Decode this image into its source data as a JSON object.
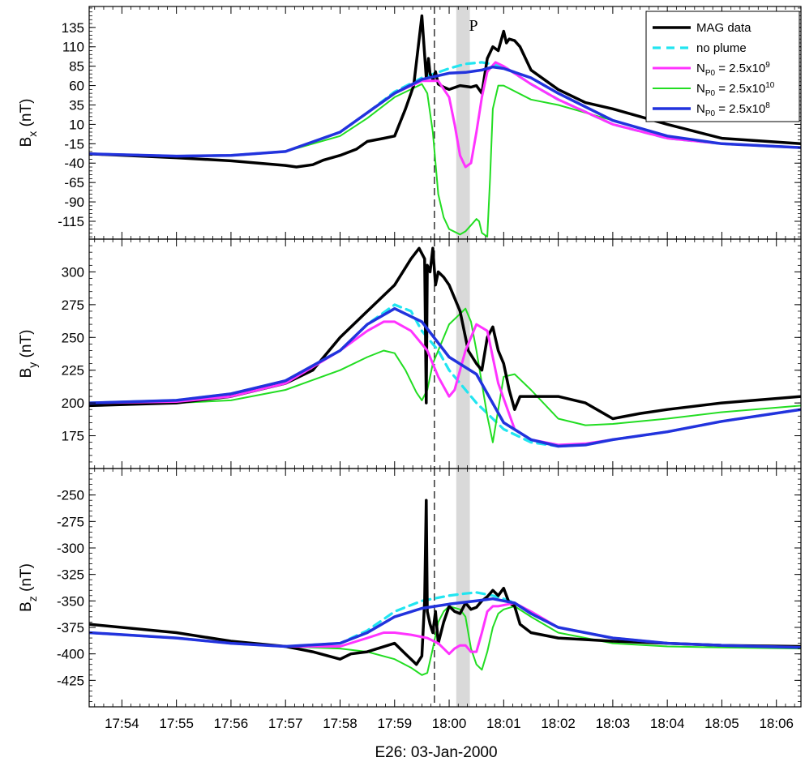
{
  "figure": {
    "xlabel": "E26: 03-Jan-2000",
    "x_ticks": [
      "17:54",
      "17:55",
      "17:56",
      "17:57",
      "17:58",
      "17:59",
      "18:00",
      "18:01",
      "18:02",
      "18:03",
      "18:04",
      "18:05",
      "18:06"
    ],
    "x_range_minutes": [
      -6.6,
      6.45
    ],
    "shaded_label": "P",
    "shaded_interval_minutes": [
      0.13,
      0.38
    ],
    "dashed_line_minute": -0.27
  },
  "legend": {
    "entries": [
      {
        "label": "MAG data",
        "color": "#000000",
        "style": "solid"
      },
      {
        "label": "no plume",
        "color": "#22e5f0",
        "style": "dashed"
      },
      {
        "label": "N_P0 = 2.5x10^9",
        "display": [
          "N",
          "P0",
          " = 2.5x10",
          "9"
        ],
        "color": "#ff33ff",
        "style": "solid"
      },
      {
        "label": "N_P0 = 2.5x10^10",
        "display": [
          "N",
          "P0",
          " = 2.5x10",
          "10"
        ],
        "color": "#22dd22",
        "style": "solid"
      },
      {
        "label": "N_P0 = 2.5x10^8",
        "display": [
          "N",
          "P0",
          " = 2.5x10",
          "8"
        ],
        "color": "#2233dd",
        "style": "solid"
      }
    ]
  },
  "chart_data": [
    {
      "type": "line",
      "panel": "Bx",
      "ylabel_main": "B",
      "ylabel_sub": "x",
      "ylabel_unit": "(nT)",
      "ylim": [
        -138,
        162
      ],
      "y_ticks": [
        135,
        110,
        85,
        60,
        35,
        10,
        -15,
        -40,
        -65,
        -90,
        -115
      ],
      "series": [
        {
          "name": "MAG data",
          "x": [
            -6.6,
            -5,
            -4,
            -3.5,
            -3,
            -2.8,
            -2.5,
            -2.3,
            -2,
            -1.7,
            -1.5,
            -1.2,
            -1,
            -0.8,
            -0.65,
            -0.5,
            -0.42,
            -0.38,
            -0.35,
            -0.3,
            -0.25,
            -0.2,
            -0.1,
            0,
            0.2,
            0.4,
            0.5,
            0.6,
            0.7,
            0.8,
            0.9,
            1,
            1.05,
            1.1,
            1.2,
            1.3,
            1.5,
            2,
            2.5,
            3,
            3.5,
            4,
            5,
            6.45
          ],
          "y": [
            -28,
            -33,
            -37,
            -40,
            -43,
            -45,
            -42,
            -36,
            -30,
            -22,
            -12,
            -8,
            -5,
            30,
            60,
            150,
            70,
            95,
            75,
            68,
            78,
            62,
            58,
            55,
            60,
            58,
            60,
            50,
            95,
            110,
            105,
            130,
            115,
            120,
            118,
            110,
            80,
            55,
            38,
            30,
            20,
            10,
            -8,
            -15
          ]
        },
        {
          "name": "no plume",
          "x": [
            -6.6,
            -5,
            -4,
            -3,
            -2,
            -1.5,
            -1,
            -0.5,
            0,
            0.3,
            0.6,
            1,
            1.5,
            2,
            3,
            4,
            5,
            6.45
          ],
          "y": [
            -28,
            -31,
            -30,
            -25,
            0,
            25,
            52,
            70,
            82,
            88,
            90,
            85,
            62,
            42,
            10,
            -8,
            -15,
            -20
          ]
        },
        {
          "name": "N_P0 = 2.5x10^9",
          "x": [
            -6.6,
            -5,
            -4,
            -3,
            -2,
            -1.5,
            -1,
            -0.5,
            -0.2,
            0,
            0.1,
            0.2,
            0.3,
            0.4,
            0.5,
            0.6,
            0.7,
            0.85,
            1,
            1.5,
            2,
            3,
            4,
            5,
            6.45
          ],
          "y": [
            -28,
            -31,
            -30,
            -25,
            0,
            25,
            50,
            66,
            66,
            45,
            10,
            -30,
            -45,
            -40,
            0,
            45,
            78,
            90,
            85,
            62,
            42,
            10,
            -8,
            -15,
            -20
          ]
        },
        {
          "name": "N_P0 = 2.5x10^10",
          "x": [
            -6.6,
            -5,
            -4,
            -3,
            -2,
            -1.5,
            -1,
            -0.5,
            -0.4,
            -0.3,
            -0.2,
            -0.1,
            0,
            0.2,
            0.3,
            0.4,
            0.5,
            0.55,
            0.6,
            0.7,
            0.75,
            0.8,
            0.9,
            1,
            1.5,
            2,
            3,
            4,
            5,
            6.45
          ],
          "y": [
            -28,
            -31,
            -30,
            -25,
            -5,
            18,
            45,
            62,
            50,
            0,
            -80,
            -110,
            -125,
            -132,
            -128,
            -120,
            -112,
            -115,
            -130,
            -135,
            -60,
            30,
            60,
            60,
            42,
            35,
            15,
            -5,
            -15,
            -20
          ]
        },
        {
          "name": "N_P0 = 2.5x10^8",
          "x": [
            -6.6,
            -5,
            -4,
            -3,
            -2,
            -1.5,
            -1,
            -0.5,
            0,
            0.3,
            0.6,
            0.8,
            1,
            1.5,
            2,
            3,
            4,
            5,
            6.45
          ],
          "y": [
            -28,
            -31,
            -30,
            -25,
            0,
            25,
            50,
            68,
            76,
            77,
            80,
            84,
            82,
            70,
            50,
            15,
            -5,
            -15,
            -20
          ]
        }
      ]
    },
    {
      "type": "line",
      "panel": "By",
      "ylabel_main": "B",
      "ylabel_sub": "y",
      "ylabel_unit": "(nT)",
      "ylim": [
        150,
        325
      ],
      "y_ticks": [
        300,
        275,
        250,
        225,
        200,
        175
      ],
      "series": [
        {
          "name": "MAG data",
          "x": [
            -6.6,
            -5,
            -4,
            -3,
            -2.5,
            -2,
            -1.5,
            -1,
            -0.7,
            -0.55,
            -0.45,
            -0.42,
            -0.4,
            -0.35,
            -0.3,
            -0.25,
            -0.2,
            -0.1,
            0,
            0.2,
            0.35,
            0.5,
            0.6,
            0.7,
            0.8,
            0.9,
            1,
            1.1,
            1.2,
            1.3,
            1.5,
            2,
            2.5,
            3,
            3.5,
            4,
            5,
            6.45
          ],
          "y": [
            198,
            200,
            205,
            215,
            225,
            250,
            270,
            290,
            310,
            318,
            310,
            200,
            305,
            300,
            318,
            290,
            300,
            296,
            290,
            270,
            240,
            230,
            225,
            250,
            258,
            240,
            230,
            210,
            195,
            205,
            205,
            205,
            200,
            188,
            192,
            195,
            200,
            205
          ]
        },
        {
          "name": "no plume",
          "x": [
            -6.6,
            -5,
            -4,
            -3,
            -2,
            -1.5,
            -1,
            -0.7,
            -0.5,
            -0.2,
            0,
            0.5,
            1,
            1.5,
            2,
            2.5,
            3,
            4,
            5,
            6.45
          ],
          "y": [
            200,
            202,
            207,
            217,
            240,
            260,
            275,
            270,
            255,
            240,
            225,
            200,
            180,
            170,
            167,
            168,
            172,
            178,
            186,
            195
          ]
        },
        {
          "name": "N_P0 = 2.5x10^9",
          "x": [
            -6.6,
            -5,
            -4,
            -3,
            -2,
            -1.5,
            -1.2,
            -1,
            -0.7,
            -0.4,
            -0.2,
            0,
            0.1,
            0.2,
            0.3,
            0.5,
            0.7,
            0.9,
            1.2,
            1.5,
            2,
            2.5,
            3,
            4,
            5,
            6.45
          ],
          "y": [
            200,
            201,
            205,
            215,
            240,
            255,
            262,
            262,
            255,
            240,
            220,
            205,
            210,
            225,
            240,
            260,
            255,
            215,
            180,
            172,
            168,
            169,
            172,
            178,
            186,
            195
          ]
        },
        {
          "name": "N_P0 = 2.5x10^10",
          "x": [
            -6.6,
            -5,
            -4,
            -3,
            -2,
            -1.5,
            -1.2,
            -1,
            -0.8,
            -0.6,
            -0.5,
            -0.4,
            -0.3,
            -0.1,
            0,
            0.2,
            0.3,
            0.4,
            0.5,
            0.6,
            0.7,
            0.8,
            0.9,
            1,
            1.2,
            1.5,
            2,
            2.5,
            3,
            4,
            5,
            6.45
          ],
          "y": [
            200,
            200,
            202,
            210,
            225,
            235,
            240,
            238,
            225,
            208,
            202,
            210,
            230,
            250,
            260,
            268,
            272,
            262,
            240,
            215,
            190,
            170,
            195,
            220,
            222,
            210,
            188,
            183,
            184,
            188,
            193,
            198
          ]
        },
        {
          "name": "N_P0 = 2.5x10^8",
          "x": [
            -6.6,
            -5,
            -4,
            -3,
            -2,
            -1.5,
            -1,
            -0.5,
            0,
            0.5,
            1,
            1.5,
            2,
            2.5,
            3,
            4,
            5,
            6.45
          ],
          "y": [
            200,
            202,
            207,
            217,
            240,
            260,
            272,
            262,
            235,
            222,
            185,
            172,
            167,
            168,
            172,
            178,
            186,
            195
          ]
        }
      ]
    },
    {
      "type": "line",
      "panel": "Bz",
      "ylabel_main": "B",
      "ylabel_sub": "z",
      "ylabel_unit": "(nT)",
      "ylim": [
        -450,
        -225
      ],
      "y_ticks": [
        -250,
        -275,
        -300,
        -325,
        -350,
        -375,
        -400,
        -425
      ],
      "series": [
        {
          "name": "MAG data",
          "x": [
            -6.6,
            -5,
            -4,
            -3,
            -2.5,
            -2,
            -1.8,
            -1.5,
            -1,
            -0.8,
            -0.6,
            -0.5,
            -0.45,
            -0.42,
            -0.4,
            -0.35,
            -0.3,
            -0.25,
            -0.2,
            -0.1,
            0,
            0.1,
            0.2,
            0.3,
            0.4,
            0.5,
            0.6,
            0.7,
            0.8,
            0.9,
            1,
            1.1,
            1.2,
            1.3,
            1.5,
            2,
            3,
            4,
            5,
            6.45
          ],
          "y": [
            -372,
            -380,
            -388,
            -393,
            -398,
            -405,
            -400,
            -398,
            -390,
            -400,
            -410,
            -402,
            -350,
            -255,
            -360,
            -372,
            -380,
            -360,
            -390,
            -370,
            -355,
            -360,
            -362,
            -352,
            -358,
            -356,
            -350,
            -346,
            -340,
            -345,
            -338,
            -352,
            -355,
            -372,
            -380,
            -385,
            -388,
            -390,
            -392,
            -393
          ]
        },
        {
          "name": "no plume",
          "x": [
            -6.6,
            -5,
            -4,
            -3,
            -2,
            -1.5,
            -1,
            -0.5,
            0,
            0.3,
            0.5,
            0.8,
            1,
            1.2,
            1.5,
            2,
            3,
            4,
            5,
            6.45
          ],
          "y": [
            -380,
            -385,
            -390,
            -393,
            -390,
            -378,
            -360,
            -350,
            -345,
            -343,
            -342,
            -345,
            -348,
            -352,
            -362,
            -375,
            -385,
            -390,
            -392,
            -394
          ]
        },
        {
          "name": "N_P0 = 2.5x10^9",
          "x": [
            -6.6,
            -5,
            -4,
            -3,
            -2,
            -1.5,
            -1.2,
            -1,
            -0.7,
            -0.4,
            -0.2,
            0,
            0.1,
            0.2,
            0.3,
            0.4,
            0.5,
            0.6,
            0.7,
            0.8,
            0.9,
            1.2,
            1.5,
            2,
            3,
            4,
            5,
            6.45
          ],
          "y": [
            -380,
            -385,
            -390,
            -393,
            -393,
            -385,
            -380,
            -380,
            -382,
            -385,
            -390,
            -400,
            -395,
            -392,
            -392,
            -398,
            -398,
            -380,
            -360,
            -355,
            -355,
            -352,
            -360,
            -375,
            -385,
            -390,
            -392,
            -394
          ]
        },
        {
          "name": "N_P0 = 2.5x10^10",
          "x": [
            -6.6,
            -5,
            -4,
            -3,
            -2,
            -1.5,
            -1,
            -0.7,
            -0.5,
            -0.4,
            -0.3,
            -0.2,
            -0.1,
            0,
            0.2,
            0.3,
            0.4,
            0.5,
            0.6,
            0.7,
            0.8,
            0.9,
            1,
            1.2,
            1.5,
            2,
            3,
            4,
            5,
            6.45
          ],
          "y": [
            -380,
            -385,
            -390,
            -393,
            -395,
            -398,
            -405,
            -413,
            -420,
            -418,
            -395,
            -370,
            -360,
            -355,
            -358,
            -365,
            -395,
            -410,
            -415,
            -398,
            -375,
            -362,
            -358,
            -355,
            -365,
            -380,
            -390,
            -393,
            -394,
            -395
          ]
        },
        {
          "name": "N_P0 = 2.5x10^8",
          "x": [
            -6.6,
            -5,
            -4,
            -3,
            -2,
            -1.5,
            -1,
            -0.5,
            0,
            0.5,
            0.8,
            1,
            1.2,
            1.5,
            2,
            3,
            4,
            5,
            6.45
          ],
          "y": [
            -380,
            -385,
            -390,
            -393,
            -390,
            -380,
            -365,
            -357,
            -353,
            -350,
            -348,
            -350,
            -352,
            -362,
            -375,
            -385,
            -390,
            -392,
            -394
          ]
        }
      ]
    }
  ]
}
